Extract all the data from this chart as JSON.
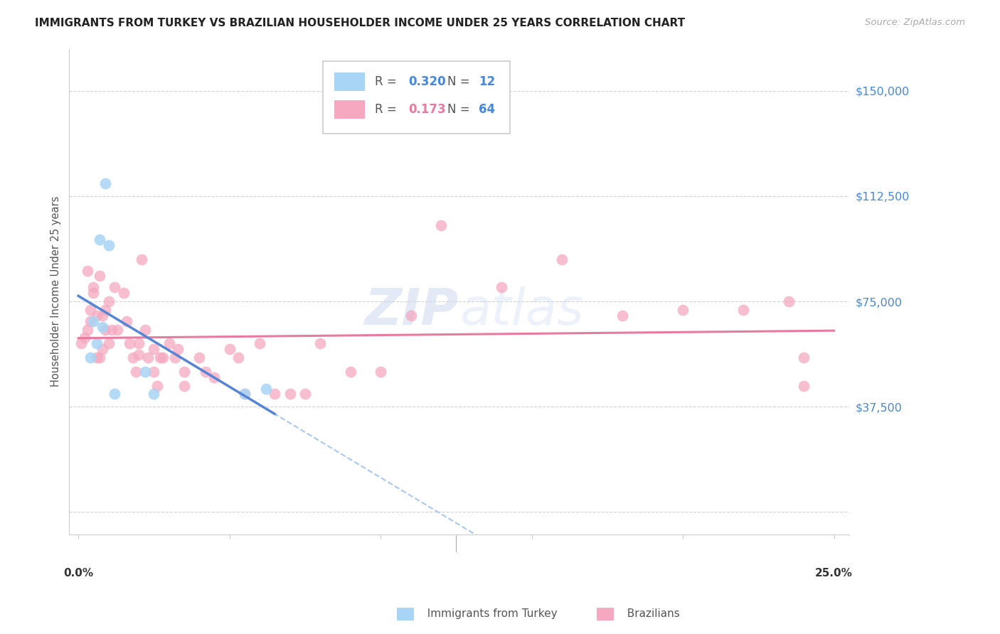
{
  "title": "IMMIGRANTS FROM TURKEY VS BRAZILIAN HOUSEHOLDER INCOME UNDER 25 YEARS CORRELATION CHART",
  "source": "Source: ZipAtlas.com",
  "ylabel": "Householder Income Under 25 years",
  "xlim": [
    0.0,
    0.25
  ],
  "ylim": [
    0,
    162500
  ],
  "legend1_R": "0.320",
  "legend1_N": "12",
  "legend2_R": "0.173",
  "legend2_N": "64",
  "color_turkey": "#a8d4f5",
  "color_brazil": "#f5a8c0",
  "color_turkey_line": "#5585d4",
  "color_turkey_dashed": "#a8c8f0",
  "color_brazil_line": "#e87aa0",
  "watermark_color": "#ccd8ee",
  "turkey_x": [
    0.004,
    0.005,
    0.006,
    0.007,
    0.008,
    0.009,
    0.01,
    0.012,
    0.022,
    0.025,
    0.055,
    0.062
  ],
  "turkey_y": [
    55000,
    68000,
    60000,
    97000,
    66000,
    117000,
    95000,
    42000,
    50000,
    42000,
    42000,
    44000
  ],
  "brazil_x": [
    0.001,
    0.002,
    0.003,
    0.003,
    0.004,
    0.004,
    0.005,
    0.005,
    0.006,
    0.006,
    0.007,
    0.007,
    0.008,
    0.008,
    0.009,
    0.009,
    0.01,
    0.01,
    0.011,
    0.012,
    0.013,
    0.015,
    0.016,
    0.017,
    0.018,
    0.019,
    0.02,
    0.02,
    0.021,
    0.022,
    0.023,
    0.025,
    0.025,
    0.026,
    0.027,
    0.028,
    0.03,
    0.032,
    0.033,
    0.035,
    0.035,
    0.04,
    0.042,
    0.045,
    0.05,
    0.053,
    0.055,
    0.06,
    0.065,
    0.07,
    0.075,
    0.08,
    0.09,
    0.1,
    0.11,
    0.12,
    0.14,
    0.16,
    0.18,
    0.2,
    0.22,
    0.235,
    0.24,
    0.24
  ],
  "brazil_y": [
    60000,
    62000,
    65000,
    86000,
    68000,
    72000,
    78000,
    80000,
    55000,
    70000,
    84000,
    55000,
    70000,
    58000,
    72000,
    65000,
    75000,
    60000,
    65000,
    80000,
    65000,
    78000,
    68000,
    60000,
    55000,
    50000,
    60000,
    56000,
    90000,
    65000,
    55000,
    58000,
    50000,
    45000,
    55000,
    55000,
    60000,
    55000,
    58000,
    50000,
    45000,
    55000,
    50000,
    48000,
    58000,
    55000,
    42000,
    60000,
    42000,
    42000,
    42000,
    60000,
    50000,
    50000,
    70000,
    102000,
    80000,
    90000,
    70000,
    72000,
    72000,
    75000,
    55000,
    45000
  ],
  "ytick_positions": [
    0,
    37500,
    75000,
    112500,
    150000
  ],
  "ytick_labels": [
    "",
    "$37,500",
    "$75,000",
    "$112,500",
    "$150,000"
  ]
}
